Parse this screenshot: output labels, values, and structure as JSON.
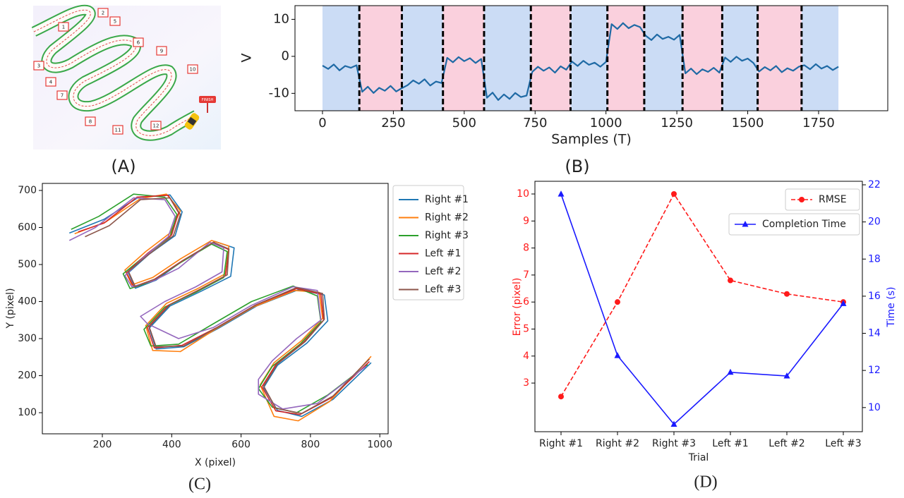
{
  "illustration": {
    "labels": [
      "1",
      "2",
      "3",
      "4",
      "5",
      "6",
      "7",
      "8",
      "9",
      "10",
      "11",
      "12"
    ],
    "finish": "FINISH"
  },
  "captions": [
    "(A)",
    "(B)",
    "(C)",
    "(D)"
  ],
  "chart_data": [
    {
      "type": "signal",
      "xlabel": "Samples (T)",
      "ylabel": "V",
      "xlim": [
        -97,
        1994
      ],
      "ylim": [
        -14.7,
        13.7
      ],
      "xticks": [
        0,
        250,
        500,
        750,
        1000,
        1250,
        1500,
        1750
      ],
      "yticks": [
        -10,
        0,
        10
      ],
      "spans": [
        {
          "start": 0,
          "end": 130,
          "color": "#cbdcf5"
        },
        {
          "start": 130,
          "end": 280,
          "color": "#fad0dd"
        },
        {
          "start": 280,
          "end": 425,
          "color": "#cbdcf5"
        },
        {
          "start": 425,
          "end": 570,
          "color": "#fad0dd"
        },
        {
          "start": 570,
          "end": 735,
          "color": "#cbdcf5"
        },
        {
          "start": 735,
          "end": 875,
          "color": "#fad0dd"
        },
        {
          "start": 875,
          "end": 1005,
          "color": "#cbdcf5"
        },
        {
          "start": 1005,
          "end": 1135,
          "color": "#fad0dd"
        },
        {
          "start": 1135,
          "end": 1270,
          "color": "#cbdcf5"
        },
        {
          "start": 1270,
          "end": 1410,
          "color": "#fad0dd"
        },
        {
          "start": 1410,
          "end": 1535,
          "color": "#cbdcf5"
        },
        {
          "start": 1535,
          "end": 1690,
          "color": "#fad0dd"
        },
        {
          "start": 1690,
          "end": 1820,
          "color": "#cbdcf5"
        }
      ],
      "x": [
        0,
        20,
        40,
        60,
        80,
        100,
        120,
        140,
        160,
        180,
        200,
        220,
        240,
        260,
        280,
        300,
        320,
        340,
        360,
        380,
        400,
        420,
        440,
        460,
        480,
        500,
        520,
        540,
        560,
        580,
        600,
        620,
        640,
        660,
        680,
        700,
        720,
        740,
        760,
        780,
        800,
        820,
        840,
        860,
        880,
        900,
        920,
        940,
        960,
        980,
        1000,
        1020,
        1040,
        1060,
        1080,
        1100,
        1120,
        1140,
        1160,
        1180,
        1200,
        1220,
        1240,
        1260,
        1280,
        1300,
        1320,
        1340,
        1360,
        1380,
        1400,
        1420,
        1440,
        1460,
        1480,
        1500,
        1520,
        1540,
        1560,
        1580,
        1600,
        1620,
        1640,
        1660,
        1680,
        1700,
        1720,
        1740,
        1760,
        1780,
        1800,
        1820
      ],
      "series": [
        {
          "color": "#1f6aa5",
          "values": [
            -2.5,
            -3.4,
            -2.2,
            -3.8,
            -2.6,
            -3.1,
            -2.4,
            -9.6,
            -8.2,
            -9.9,
            -8.5,
            -9.3,
            -8.0,
            -9.5,
            -8.6,
            -7.8,
            -6.5,
            -7.4,
            -6.2,
            -7.9,
            -6.8,
            -7.2,
            -0.4,
            -1.6,
            -0.2,
            -1.3,
            -0.5,
            -1.8,
            -0.7,
            -11.2,
            -9.8,
            -11.8,
            -10.3,
            -11.5,
            -9.9,
            -11.0,
            -10.6,
            -4.2,
            -2.8,
            -3.9,
            -3.0,
            -4.4,
            -2.7,
            -3.6,
            -1.4,
            -2.6,
            -1.2,
            -2.3,
            -1.7,
            -2.8,
            -1.5,
            8.7,
            7.4,
            9.0,
            7.6,
            8.5,
            7.9,
            5.6,
            4.4,
            5.9,
            4.7,
            5.3,
            4.5,
            5.8,
            -4.6,
            -3.3,
            -4.8,
            -3.5,
            -4.2,
            -3.1,
            -4.4,
            -0.3,
            -1.5,
            -0.1,
            -1.2,
            -0.6,
            -1.8,
            -4.1,
            -2.9,
            -3.8,
            -2.6,
            -4.3,
            -3.2,
            -3.9,
            -2.8,
            -2.4,
            -3.5,
            -2.1,
            -3.3,
            -2.6,
            -3.7,
            -2.8
          ]
        }
      ]
    },
    {
      "type": "xy",
      "xlabel": "X (pixel)",
      "ylabel": "Y (pixel)",
      "xlim": [
        27,
        1024
      ],
      "ylim": [
        43,
        719
      ],
      "xticks": [
        200,
        400,
        600,
        800,
        1000
      ],
      "yticks": [
        100,
        200,
        300,
        400,
        500,
        600,
        700
      ],
      "series": [
        {
          "name": "Right #1",
          "color": "#1f77b4",
          "x": [
            105,
            205,
            305,
            395,
            430,
            410,
            335,
            275,
            295,
            355,
            435,
            525,
            580,
            570,
            485,
            395,
            335,
            355,
            435,
            535,
            645,
            765,
            840,
            850,
            790,
            705,
            665,
            705,
            775,
            865,
            975
          ],
          "values": [
            585,
            622,
            682,
            688,
            642,
            578,
            528,
            478,
            436,
            458,
            512,
            562,
            545,
            468,
            428,
            388,
            328,
            272,
            278,
            328,
            388,
            432,
            418,
            348,
            288,
            228,
            168,
            106,
            90,
            136,
            235
          ]
        },
        {
          "name": "Right #2",
          "color": "#ff7f0e",
          "x": [
            120,
            210,
            310,
            385,
            425,
            395,
            325,
            265,
            285,
            345,
            425,
            515,
            565,
            555,
            475,
            385,
            325,
            345,
            425,
            525,
            635,
            755,
            825,
            835,
            775,
            695,
            655,
            695,
            765,
            855,
            975
          ],
          "values": [
            583,
            615,
            678,
            690,
            645,
            585,
            535,
            485,
            445,
            465,
            515,
            565,
            550,
            475,
            435,
            395,
            335,
            268,
            265,
            325,
            385,
            430,
            425,
            355,
            295,
            235,
            175,
            90,
            78,
            130,
            252
          ]
        },
        {
          "name": "Right #3",
          "color": "#2ca02c",
          "x": [
            110,
            190,
            290,
            380,
            415,
            395,
            325,
            260,
            280,
            345,
            425,
            515,
            560,
            550,
            470,
            380,
            320,
            340,
            420,
            520,
            630,
            750,
            820,
            830,
            770,
            690,
            650,
            690,
            760,
            850,
            965
          ],
          "values": [
            595,
            630,
            690,
            682,
            635,
            575,
            525,
            475,
            435,
            455,
            505,
            555,
            535,
            465,
            425,
            385,
            325,
            280,
            285,
            340,
            400,
            442,
            415,
            345,
            285,
            225,
            165,
            115,
            100,
            148,
            230
          ]
        },
        {
          "name": "Left #1",
          "color": "#d62728",
          "x": [
            130,
            205,
            300,
            390,
            420,
            400,
            330,
            270,
            290,
            350,
            430,
            520,
            565,
            555,
            475,
            390,
            330,
            350,
            430,
            530,
            640,
            760,
            830,
            838,
            780,
            700,
            660,
            700,
            770,
            860,
            970
          ],
          "values": [
            588,
            612,
            682,
            687,
            640,
            580,
            530,
            478,
            440,
            460,
            510,
            560,
            540,
            470,
            430,
            390,
            330,
            275,
            282,
            330,
            390,
            435,
            420,
            350,
            290,
            230,
            170,
            105,
            95,
            140,
            238
          ]
        },
        {
          "name": "Left #2",
          "color": "#9467bd",
          "x": [
            105,
            180,
            290,
            380,
            410,
            390,
            320,
            265,
            285,
            345,
            420,
            510,
            550,
            545,
            470,
            380,
            310,
            330,
            420,
            520,
            630,
            750,
            820,
            830,
            760,
            690,
            650,
            650,
            720,
            820,
            960
          ],
          "values": [
            565,
            600,
            680,
            675,
            630,
            575,
            520,
            470,
            440,
            455,
            490,
            560,
            545,
            480,
            440,
            400,
            360,
            340,
            300,
            330,
            390,
            440,
            430,
            350,
            300,
            240,
            190,
            150,
            110,
            125,
            225
          ]
        },
        {
          "name": "Left #3",
          "color": "#8c564b",
          "x": [
            150,
            220,
            310,
            395,
            425,
            405,
            335,
            275,
            295,
            355,
            435,
            520,
            565,
            560,
            480,
            395,
            335,
            355,
            435,
            535,
            645,
            760,
            835,
            840,
            785,
            705,
            665,
            700,
            775,
            865,
            970
          ],
          "values": [
            575,
            605,
            675,
            680,
            635,
            578,
            528,
            482,
            440,
            462,
            512,
            560,
            542,
            472,
            432,
            392,
            332,
            278,
            280,
            332,
            392,
            438,
            422,
            352,
            292,
            232,
            172,
            112,
            98,
            145,
            245
          ]
        }
      ]
    },
    {
      "type": "dual-line",
      "xlabel": "Trial",
      "ylabel": "Error (pixel)",
      "y2label": "Time (s)",
      "categories": [
        "Right #1",
        "Right #2",
        "Right #3",
        "Left #1",
        "Left #2",
        "Left #3"
      ],
      "ylim": [
        1.2,
        10.47
      ],
      "yticks": [
        3,
        4,
        5,
        6,
        7,
        8,
        9,
        10
      ],
      "y2lim": [
        8.7,
        22.19
      ],
      "y2ticks": [
        10,
        12,
        14,
        16,
        18,
        20,
        22
      ],
      "series": [
        {
          "name": "RMSE",
          "color": "#ff1a1a",
          "linestyle": "dashed",
          "marker": "circle",
          "values": [
            2.5,
            6.0,
            10.0,
            6.8,
            6.3,
            6.0
          ]
        },
        {
          "name": "Completion Time",
          "color": "#1a1aff",
          "linestyle": "solid",
          "marker": "triangle",
          "axis": "y2",
          "values": [
            21.5,
            12.8,
            9.1,
            11.9,
            11.7,
            15.6
          ]
        }
      ]
    }
  ]
}
